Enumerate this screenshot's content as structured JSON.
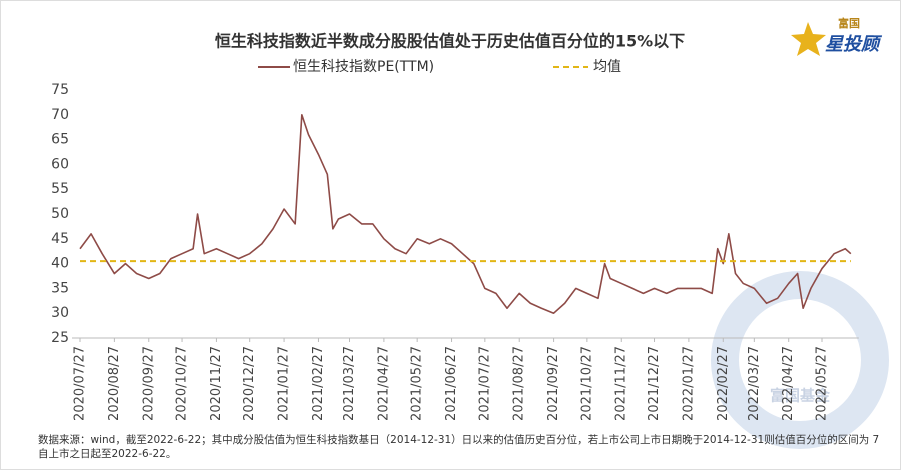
{
  "chart_data": {
    "type": "line",
    "title": "恒生科技指数近半数成分股股估值处于历史估值百分位的15%以下",
    "x": [
      "2020/07/27",
      "2020/08/06",
      "2020/08/16",
      "2020/08/27",
      "2020/09/06",
      "2020/09/16",
      "2020/09/27",
      "2020/10/07",
      "2020/10/17",
      "2020/10/27",
      "2020/11/06",
      "2020/11/10",
      "2020/11/16",
      "2020/11/27",
      "2020/12/07",
      "2020/12/17",
      "2020/12/27",
      "2021/01/07",
      "2021/01/17",
      "2021/01/27",
      "2021/02/06",
      "2021/02/12",
      "2021/02/18",
      "2021/02/27",
      "2021/03/07",
      "2021/03/12",
      "2021/03/17",
      "2021/03/27",
      "2021/04/07",
      "2021/04/17",
      "2021/04/27",
      "2021/05/07",
      "2021/05/17",
      "2021/05/27",
      "2021/06/07",
      "2021/06/17",
      "2021/06/27",
      "2021/07/07",
      "2021/07/17",
      "2021/07/27",
      "2021/08/06",
      "2021/08/16",
      "2021/08/27",
      "2021/09/06",
      "2021/09/16",
      "2021/09/27",
      "2021/10/07",
      "2021/10/17",
      "2021/10/27",
      "2021/11/06",
      "2021/11/12",
      "2021/11/17",
      "2021/11/27",
      "2021/12/07",
      "2021/12/17",
      "2021/12/27",
      "2022/01/07",
      "2022/01/17",
      "2022/01/27",
      "2022/02/07",
      "2022/02/17",
      "2022/02/22",
      "2022/02/27",
      "2022/03/04",
      "2022/03/10",
      "2022/03/17",
      "2022/03/27",
      "2022/04/07",
      "2022/04/17",
      "2022/04/27",
      "2022/05/05",
      "2022/05/10",
      "2022/05/17",
      "2022/05/27",
      "2022/06/07",
      "2022/06/17",
      "2022/06/22"
    ],
    "series": [
      {
        "name": "恒生科技指数PE(TTM)",
        "color": "#8e4b47",
        "values": [
          43,
          46,
          42,
          38,
          40,
          38,
          37,
          38,
          41,
          42,
          43,
          50,
          42,
          43,
          42,
          41,
          42,
          44,
          47,
          51,
          48,
          70,
          66,
          62,
          58,
          47,
          49,
          50,
          48,
          48,
          45,
          43,
          42,
          45,
          44,
          45,
          44,
          42,
          40,
          35,
          34,
          31,
          34,
          32,
          31,
          30,
          32,
          35,
          34,
          33,
          40,
          37,
          36,
          35,
          34,
          35,
          34,
          35,
          35,
          35,
          34,
          43,
          40,
          46,
          38,
          36,
          35,
          32,
          33,
          36,
          38,
          31,
          35,
          39,
          42,
          43,
          42
        ]
      },
      {
        "name": "均值",
        "color": "#e2b616",
        "mean": 40.5
      }
    ],
    "xticks": [
      "2020/07/27",
      "2020/08/27",
      "2020/09/27",
      "2020/10/27",
      "2020/11/27",
      "2020/12/27",
      "2021/01/27",
      "2021/02/27",
      "2021/03/27",
      "2021/04/27",
      "2021/05/27",
      "2021/06/27",
      "2021/07/27",
      "2021/08/27",
      "2021/09/27",
      "2021/10/27",
      "2021/11/27",
      "2021/12/27",
      "2022/01/27",
      "2022/02/27",
      "2022/03/27",
      "2022/04/27",
      "2022/05/27"
    ],
    "ylim": [
      25,
      75
    ],
    "yticks": [
      25,
      30,
      35,
      40,
      45,
      50,
      55,
      60,
      65,
      70,
      75
    ],
    "grid": false
  },
  "source_note": [
    "数据来源：wind，截至2022-6-22；其中成分股估值为恒生科技指数基日（2014-12-31）日以来的估值历史百分位，若上市公司上市日期晚于2014-12-31则估值百分位的区间为 7",
    "自上市之日起至2022-6-22。"
  ],
  "logo": [
    "富国",
    "星投顾"
  ],
  "watermark": "富国基金"
}
